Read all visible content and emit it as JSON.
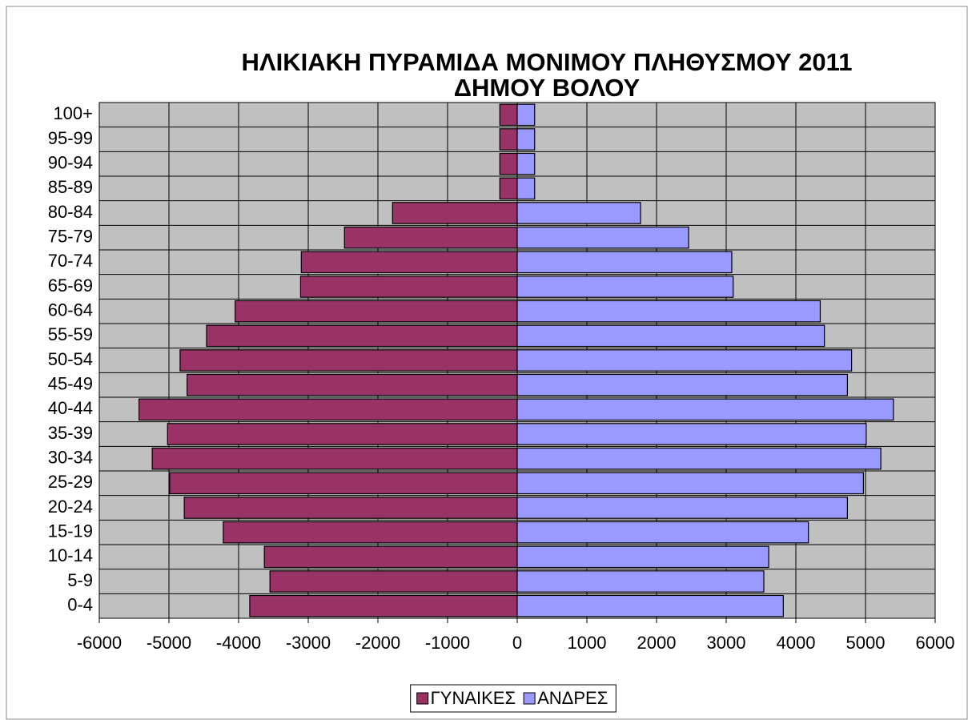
{
  "chart_data": {
    "type": "pyramid",
    "title": "ΗΛΙΚΙΑΚΗ ΠΥΡΑΜΙΔΑ ΜΟΝΙΜΟΥ ΠΛΗΘΥΣΜΟΥ 2011",
    "subtitle": "ΔΗΜΟΥ ΒΟΛΟΥ",
    "categories": [
      "0-4",
      "5-9",
      "10-14",
      "15-19",
      "20-24",
      "25-29",
      "30-34",
      "35-39",
      "40-44",
      "45-49",
      "50-54",
      "55-59",
      "60-64",
      "65-69",
      "70-74",
      "75-79",
      "80-84",
      "85-89",
      "90-94",
      "95-99",
      "100+"
    ],
    "series": [
      {
        "name": "ΓΥΝΑΙΚΕΣ",
        "color": "#993366",
        "values": [
          -3840,
          -3550,
          -3630,
          -4220,
          -4780,
          -4990,
          -5240,
          -5020,
          -5430,
          -4740,
          -4840,
          -4460,
          -4050,
          -3110,
          -3100,
          -2480,
          -1790,
          -250,
          -250,
          -250,
          -250
        ]
      },
      {
        "name": "ΑΝΔΡΕΣ",
        "color": "#9999ff",
        "values": [
          3820,
          3540,
          3610,
          4180,
          4740,
          4970,
          5220,
          5010,
          5400,
          4740,
          4800,
          4410,
          4350,
          3100,
          3080,
          2460,
          1770,
          250,
          250,
          250,
          250
        ]
      }
    ],
    "xlim": [
      -6000,
      6000
    ],
    "xticks": [
      -6000,
      -5000,
      -4000,
      -3000,
      -2000,
      -1000,
      0,
      1000,
      2000,
      3000,
      4000,
      5000,
      6000
    ],
    "grid": true,
    "legend": "bottom"
  }
}
